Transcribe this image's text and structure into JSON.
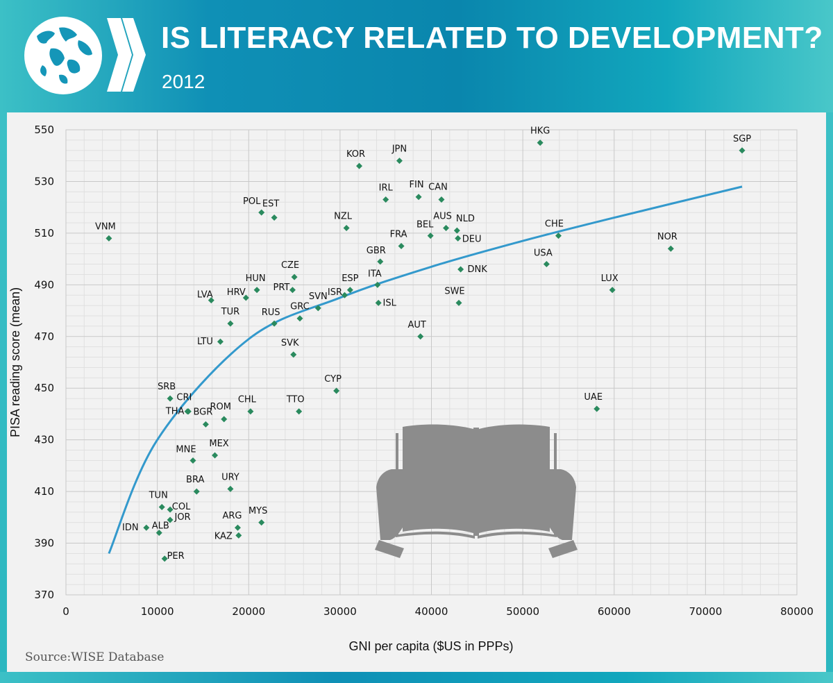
{
  "header": {
    "title": "IS LITERACY RELATED TO DEVELOPMENT?",
    "subtitle": "2012"
  },
  "source": "Source:WISE Database",
  "colors": {
    "header_teal": "#0f90b6",
    "marker": "#2a8a5e",
    "trend_line": "#3399cc",
    "plot_background": "#f2f2f2",
    "book_icon": "#8c8c8c"
  },
  "icons": [
    "globe-icon",
    "chevron-right-icon",
    "open-book-hands-icon"
  ],
  "chart_data": {
    "type": "scatter",
    "title": "IS LITERACY RELATED TO DEVELOPMENT?",
    "subtitle": "2012",
    "xlabel": "GNI per capita ($US in PPPs)",
    "ylabel": "PISA reading score (mean)",
    "xlim": [
      0,
      80000
    ],
    "ylim": [
      370,
      550
    ],
    "x_ticks": [
      0,
      10000,
      20000,
      30000,
      40000,
      50000,
      60000,
      70000,
      80000
    ],
    "y_ticks": [
      370,
      390,
      410,
      430,
      450,
      470,
      490,
      510,
      530,
      550
    ],
    "grid": true,
    "legend": "none",
    "points": [
      {
        "label": "HKG",
        "x": 51900,
        "y": 545
      },
      {
        "label": "SGP",
        "x": 74000,
        "y": 542
      },
      {
        "label": "JPN",
        "x": 36500,
        "y": 538
      },
      {
        "label": "KOR",
        "x": 32100,
        "y": 536
      },
      {
        "label": "FIN",
        "x": 38600,
        "y": 524
      },
      {
        "label": "IRL",
        "x": 35000,
        "y": 523
      },
      {
        "label": "CAN",
        "x": 41100,
        "y": 523
      },
      {
        "label": "POL",
        "x": 21400,
        "y": 518
      },
      {
        "label": "EST",
        "x": 22800,
        "y": 516
      },
      {
        "label": "NZL",
        "x": 30700,
        "y": 512
      },
      {
        "label": "AUS",
        "x": 41600,
        "y": 512
      },
      {
        "label": "NLD",
        "x": 42800,
        "y": 511
      },
      {
        "label": "BEL",
        "x": 39900,
        "y": 509
      },
      {
        "label": "CHE",
        "x": 53900,
        "y": 509
      },
      {
        "label": "VNM",
        "x": 4700,
        "y": 508
      },
      {
        "label": "DEU",
        "x": 42900,
        "y": 508
      },
      {
        "label": "FRA",
        "x": 36700,
        "y": 505
      },
      {
        "label": "NOR",
        "x": 66200,
        "y": 504
      },
      {
        "label": "GBR",
        "x": 34400,
        "y": 499
      },
      {
        "label": "USA",
        "x": 52600,
        "y": 498
      },
      {
        "label": "DNK",
        "x": 43200,
        "y": 496
      },
      {
        "label": "CZE",
        "x": 25000,
        "y": 493
      },
      {
        "label": "ITA",
        "x": 34100,
        "y": 490
      },
      {
        "label": "HUN",
        "x": 20900,
        "y": 488
      },
      {
        "label": "ESP",
        "x": 31100,
        "y": 488
      },
      {
        "label": "LUX",
        "x": 59800,
        "y": 488
      },
      {
        "label": "PRT",
        "x": 24800,
        "y": 488
      },
      {
        "label": "ISR",
        "x": 30500,
        "y": 486
      },
      {
        "label": "HRV",
        "x": 19700,
        "y": 485
      },
      {
        "label": "LVA",
        "x": 15900,
        "y": 484
      },
      {
        "label": "SWE",
        "x": 43000,
        "y": 483
      },
      {
        "label": "ISL",
        "x": 34200,
        "y": 483
      },
      {
        "label": "SVN",
        "x": 27600,
        "y": 481
      },
      {
        "label": "GRC",
        "x": 25600,
        "y": 477
      },
      {
        "label": "TUR",
        "x": 18000,
        "y": 475
      },
      {
        "label": "RUS",
        "x": 22800,
        "y": 475
      },
      {
        "label": "AUT",
        "x": 38800,
        "y": 470
      },
      {
        "label": "LTU",
        "x": 16900,
        "y": 468
      },
      {
        "label": "SVK",
        "x": 24900,
        "y": 463
      },
      {
        "label": "CYP",
        "x": 29600,
        "y": 449
      },
      {
        "label": "SRB",
        "x": 11400,
        "y": 446
      },
      {
        "label": "CRI",
        "x": 13400,
        "y": 441
      },
      {
        "label": "THA",
        "x": 13300,
        "y": 441
      },
      {
        "label": "CHL",
        "x": 20200,
        "y": 441
      },
      {
        "label": "TTO",
        "x": 25500,
        "y": 441
      },
      {
        "label": "UAE",
        "x": 58100,
        "y": 442
      },
      {
        "label": "ROM",
        "x": 17300,
        "y": 438
      },
      {
        "label": "BGR",
        "x": 15300,
        "y": 436
      },
      {
        "label": "MEX",
        "x": 16300,
        "y": 424
      },
      {
        "label": "MNE",
        "x": 13900,
        "y": 422
      },
      {
        "label": "URY",
        "x": 18000,
        "y": 411
      },
      {
        "label": "BRA",
        "x": 14300,
        "y": 410
      },
      {
        "label": "TUN",
        "x": 10500,
        "y": 404
      },
      {
        "label": "COL",
        "x": 11400,
        "y": 403
      },
      {
        "label": "JOR",
        "x": 11400,
        "y": 399
      },
      {
        "label": "MYS",
        "x": 21400,
        "y": 398
      },
      {
        "label": "IDN",
        "x": 8800,
        "y": 396
      },
      {
        "label": "ARG",
        "x": 18800,
        "y": 396
      },
      {
        "label": "ALB",
        "x": 10200,
        "y": 394
      },
      {
        "label": "KAZ",
        "x": 18900,
        "y": 393
      },
      {
        "label": "PER",
        "x": 10800,
        "y": 384
      }
    ],
    "trend_line": {
      "type": "logarithmic",
      "points": [
        {
          "x": 4700,
          "y": 386
        },
        {
          "x": 10000,
          "y": 430
        },
        {
          "x": 20000,
          "y": 469
        },
        {
          "x": 30000,
          "y": 485
        },
        {
          "x": 40000,
          "y": 497
        },
        {
          "x": 50000,
          "y": 507
        },
        {
          "x": 60000,
          "y": 516
        },
        {
          "x": 74000,
          "y": 528
        }
      ]
    }
  }
}
